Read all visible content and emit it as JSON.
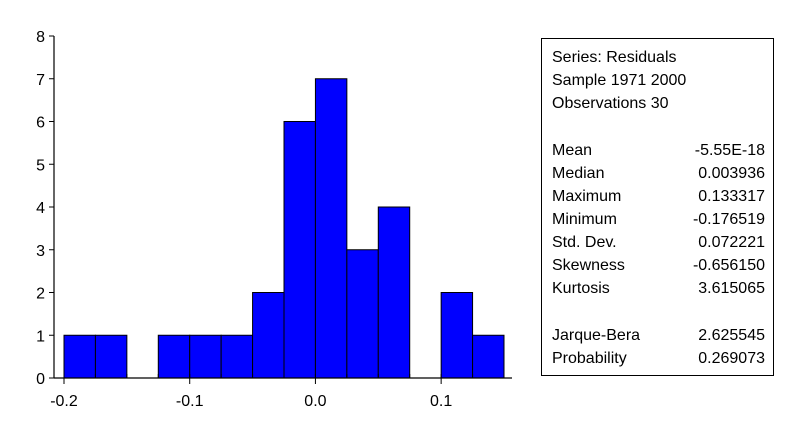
{
  "chart_data": {
    "type": "histogram",
    "title": "",
    "xlabel": "",
    "ylabel": "",
    "bar_color": "#0000ff",
    "bin_width": 0.025,
    "bins": [
      {
        "from": -0.2,
        "to": -0.175,
        "count": 1
      },
      {
        "from": -0.175,
        "to": -0.15,
        "count": 1
      },
      {
        "from": -0.15,
        "to": -0.125,
        "count": 0
      },
      {
        "from": -0.125,
        "to": -0.1,
        "count": 1
      },
      {
        "from": -0.1,
        "to": -0.075,
        "count": 1
      },
      {
        "from": -0.075,
        "to": -0.05,
        "count": 1
      },
      {
        "from": -0.05,
        "to": -0.025,
        "count": 2
      },
      {
        "from": -0.025,
        "to": 0.0,
        "count": 6
      },
      {
        "from": 0.0,
        "to": 0.025,
        "count": 7
      },
      {
        "from": 0.025,
        "to": 0.05,
        "count": 3
      },
      {
        "from": 0.05,
        "to": 0.075,
        "count": 4
      },
      {
        "from": 0.075,
        "to": 0.1,
        "count": 0
      },
      {
        "from": 0.1,
        "to": 0.125,
        "count": 2
      },
      {
        "from": 0.125,
        "to": 0.15,
        "count": 1
      }
    ],
    "xlim": [
      -0.2,
      0.15
    ],
    "ylim": [
      0,
      8
    ],
    "x_ticks": [
      -0.2,
      -0.1,
      0.0,
      0.1
    ],
    "x_tick_labels": [
      "-0.2",
      "-0.1",
      "0.0",
      "0.1"
    ],
    "y_ticks": [
      0,
      1,
      2,
      3,
      4,
      5,
      6,
      7,
      8
    ],
    "y_tick_labels": [
      "0",
      "1",
      "2",
      "3",
      "4",
      "5",
      "6",
      "7",
      "8"
    ],
    "grid": false
  },
  "stats": {
    "header": [
      "Series: Residuals",
      "Sample 1971 2000",
      "Observations 30"
    ],
    "moments": [
      {
        "name": "Mean",
        "value": "-5.55E-18"
      },
      {
        "name": "Median",
        "value": "0.003936"
      },
      {
        "name": "Maximum",
        "value": "0.133317"
      },
      {
        "name": "Minimum",
        "value": "-0.176519"
      },
      {
        "name": "Std. Dev.",
        "value": "0.072221"
      },
      {
        "name": "Skewness",
        "value": "-0.656150"
      },
      {
        "name": "Kurtosis",
        "value": "3.615065"
      }
    ],
    "tests": [
      {
        "name": "Jarque-Bera",
        "value": "2.625545"
      },
      {
        "name": "Probability",
        "value": "0.269073"
      }
    ]
  }
}
